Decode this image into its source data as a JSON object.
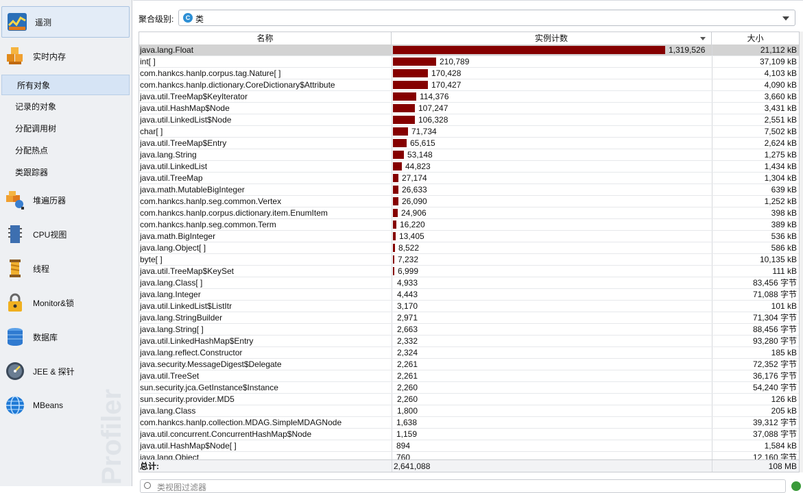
{
  "sidebar": {
    "nav": [
      {
        "label": "遥测",
        "icon": "telemetry-icon",
        "selected": true
      },
      {
        "label": "实时内存",
        "icon": "live-memory-icon",
        "selected": false
      }
    ],
    "sub_items": [
      {
        "label": "所有对象",
        "selected": true
      },
      {
        "label": "记录的对象",
        "selected": false
      },
      {
        "label": "分配调用树",
        "selected": false
      },
      {
        "label": "分配热点",
        "selected": false
      },
      {
        "label": "类跟踪器",
        "selected": false
      }
    ],
    "nav2": [
      {
        "label": "堆遍历器",
        "icon": "heap-walker-icon"
      },
      {
        "label": "CPU视图",
        "icon": "cpu-views-icon"
      },
      {
        "label": "线程",
        "icon": "threads-icon"
      },
      {
        "label": "Monitor&锁",
        "icon": "monitor-lock-icon"
      },
      {
        "label": "数据库",
        "icon": "database-icon"
      },
      {
        "label": "JEE & 探针",
        "icon": "jee-probes-icon"
      },
      {
        "label": "MBeans",
        "icon": "mbeans-icon"
      }
    ],
    "watermark": "Profiler"
  },
  "toolbar": {
    "aggregation_label": "聚合级别:",
    "aggregation_value": "类",
    "aggregation_icon_letter": "C"
  },
  "table": {
    "headers": {
      "name": "名称",
      "count": "实例计数",
      "size": "大小"
    },
    "max_count": 1319526,
    "bar_color": "#850000",
    "rows": [
      {
        "name": "java.lang.Float",
        "count": "1,319,526",
        "n": 1319526,
        "size": "21,112 kB",
        "selected": true
      },
      {
        "name": "int[ ]",
        "count": "210,789",
        "n": 210789,
        "size": "37,109 kB"
      },
      {
        "name": "com.hankcs.hanlp.corpus.tag.Nature[ ]",
        "count": "170,428",
        "n": 170428,
        "size": "4,103 kB"
      },
      {
        "name": "com.hankcs.hanlp.dictionary.CoreDictionary$Attribute",
        "count": "170,427",
        "n": 170427,
        "size": "4,090 kB"
      },
      {
        "name": "java.util.TreeMap$KeyIterator",
        "count": "114,376",
        "n": 114376,
        "size": "3,660 kB"
      },
      {
        "name": "java.util.HashMap$Node",
        "count": "107,247",
        "n": 107247,
        "size": "3,431 kB"
      },
      {
        "name": "java.util.LinkedList$Node",
        "count": "106,328",
        "n": 106328,
        "size": "2,551 kB"
      },
      {
        "name": "char[ ]",
        "count": "71,734",
        "n": 71734,
        "size": "7,502 kB"
      },
      {
        "name": "java.util.TreeMap$Entry",
        "count": "65,615",
        "n": 65615,
        "size": "2,624 kB"
      },
      {
        "name": "java.lang.String",
        "count": "53,148",
        "n": 53148,
        "size": "1,275 kB"
      },
      {
        "name": "java.util.LinkedList",
        "count": "44,823",
        "n": 44823,
        "size": "1,434 kB"
      },
      {
        "name": "java.util.TreeMap",
        "count": "27,174",
        "n": 27174,
        "size": "1,304 kB"
      },
      {
        "name": "java.math.MutableBigInteger",
        "count": "26,633",
        "n": 26633,
        "size": "639 kB"
      },
      {
        "name": "com.hankcs.hanlp.seg.common.Vertex",
        "count": "26,090",
        "n": 26090,
        "size": "1,252 kB"
      },
      {
        "name": "com.hankcs.hanlp.corpus.dictionary.item.EnumItem",
        "count": "24,906",
        "n": 24906,
        "size": "398 kB"
      },
      {
        "name": "com.hankcs.hanlp.seg.common.Term",
        "count": "16,220",
        "n": 16220,
        "size": "389 kB"
      },
      {
        "name": "java.math.BigInteger",
        "count": "13,405",
        "n": 13405,
        "size": "536 kB"
      },
      {
        "name": "java.lang.Object[ ]",
        "count": "8,522",
        "n": 8522,
        "size": "586 kB"
      },
      {
        "name": "byte[ ]",
        "count": "7,232",
        "n": 7232,
        "size": "10,135 kB"
      },
      {
        "name": "java.util.TreeMap$KeySet",
        "count": "6,999",
        "n": 6999,
        "size": "111 kB"
      },
      {
        "name": "java.lang.Class[ ]",
        "count": "4,933",
        "n": 4933,
        "size": "83,456 字节"
      },
      {
        "name": "java.lang.Integer",
        "count": "4,443",
        "n": 4443,
        "size": "71,088 字节"
      },
      {
        "name": "java.util.LinkedList$ListItr",
        "count": "3,170",
        "n": 3170,
        "size": "101 kB"
      },
      {
        "name": "java.lang.StringBuilder",
        "count": "2,971",
        "n": 2971,
        "size": "71,304 字节"
      },
      {
        "name": "java.lang.String[ ]",
        "count": "2,663",
        "n": 2663,
        "size": "88,456 字节"
      },
      {
        "name": "java.util.LinkedHashMap$Entry",
        "count": "2,332",
        "n": 2332,
        "size": "93,280 字节"
      },
      {
        "name": "java.lang.reflect.Constructor",
        "count": "2,324",
        "n": 2324,
        "size": "185 kB"
      },
      {
        "name": "java.security.MessageDigest$Delegate",
        "count": "2,261",
        "n": 2261,
        "size": "72,352 字节"
      },
      {
        "name": "java.util.TreeSet",
        "count": "2,261",
        "n": 2261,
        "size": "36,176 字节"
      },
      {
        "name": "sun.security.jca.GetInstance$Instance",
        "count": "2,260",
        "n": 2260,
        "size": "54,240 字节"
      },
      {
        "name": "sun.security.provider.MD5",
        "count": "2,260",
        "n": 2260,
        "size": "126 kB"
      },
      {
        "name": "java.lang.Class",
        "count": "1,800",
        "n": 1800,
        "size": "205 kB"
      },
      {
        "name": "com.hankcs.hanlp.collection.MDAG.SimpleMDAGNode",
        "count": "1,638",
        "n": 1638,
        "size": "39,312 字节"
      },
      {
        "name": "java.util.concurrent.ConcurrentHashMap$Node",
        "count": "1,159",
        "n": 1159,
        "size": "37,088 字节"
      },
      {
        "name": "java.util.HashMap$Node[ ]",
        "count": "894",
        "n": 894,
        "size": "1,584 kB"
      },
      {
        "name": "java.lang.Object",
        "count": "760",
        "n": 760,
        "size": "12,160 字节"
      }
    ],
    "totals": {
      "label": "总计:",
      "count": "2,641,088",
      "size": "108 MB"
    }
  },
  "filter": {
    "placeholder": "类视图过滤器"
  }
}
